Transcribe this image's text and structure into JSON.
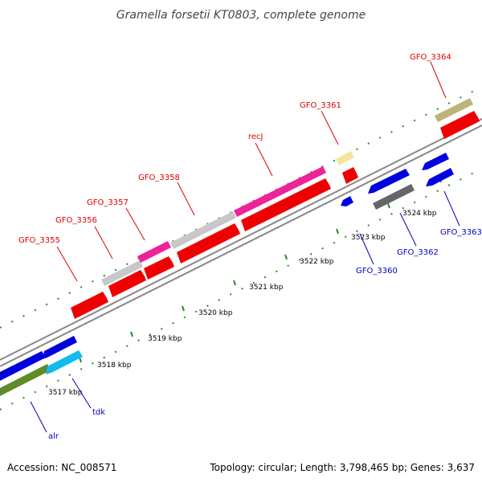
{
  "title": "Gramella forsetii KT0803, complete genome",
  "footer": {
    "accession": "Accession: NC_008571",
    "summary": "Topology: circular; Length: 3,798,465 bp; Genes: 3,637"
  },
  "colors": {
    "background": "#ffffff",
    "backbone": "#888888",
    "tick": "#2a8a2a",
    "forward_label": "#dd0000",
    "reverse_label": "#0000bb",
    "cds": "#ee0000",
    "gene_grey": "#c8c8c8",
    "gene_pink": "#ee2299",
    "gene_yellow": "#f0e6a0",
    "gene_khaki": "#bdb47a",
    "gene_blue": "#0000dd",
    "gene_cyan": "#11bbee",
    "gene_olive": "#5e8a28",
    "gene_darkgrey": "#666666"
  },
  "scale_labels": [
    "3517 kbp",
    "3518 kbp",
    "3519 kbp",
    "3520 kbp",
    "3521 kbp",
    "3522 kbp",
    "3523 kbp",
    "3524 kbp"
  ],
  "forward_genes": [
    {
      "label": "GFO_3355"
    },
    {
      "label": "GFO_3356"
    },
    {
      "label": "GFO_3357"
    },
    {
      "label": "GFO_3358"
    },
    {
      "label": "recJ"
    },
    {
      "label": "GFO_3361"
    },
    {
      "label": "GFO_3364"
    }
  ],
  "reverse_genes": [
    {
      "label": "alr"
    },
    {
      "label": "tdk"
    },
    {
      "label": "GFO_3360"
    },
    {
      "label": "GFO_3362"
    },
    {
      "label": "GFO_3363"
    }
  ]
}
